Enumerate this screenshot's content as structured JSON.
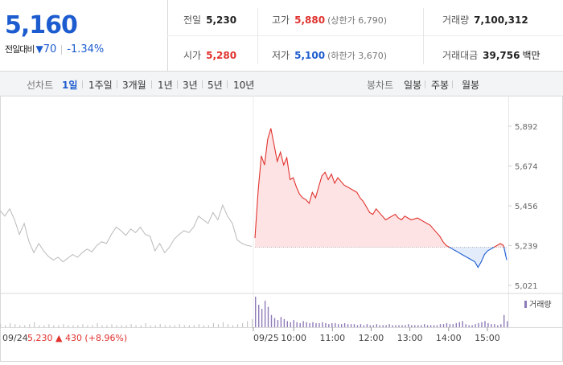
{
  "summary": {
    "price": "5,160",
    "change_label": "전일대비",
    "change_arrow": "▼",
    "change_value": "70",
    "change_pct": "-1.34%"
  },
  "stats": {
    "prev_close": {
      "label": "전일",
      "value": "5,230"
    },
    "open": {
      "label": "시가",
      "value": "5,280"
    },
    "high": {
      "label": "고가",
      "value": "5,880",
      "sub": "(상한가 6,790)"
    },
    "low": {
      "label": "저가",
      "value": "5,100",
      "sub": "(하한가 3,670)"
    },
    "volume": {
      "label": "거래량",
      "value": "7,100,312"
    },
    "amount": {
      "label": "거래대금",
      "value": "39,756",
      "unit": "백만"
    }
  },
  "toolbar": {
    "line_label": "선차트",
    "line_periods": [
      "1일",
      "1주일",
      "3개월",
      "1년",
      "3년",
      "5년",
      "10년"
    ],
    "active_period": "1일",
    "candle_label": "봉차트",
    "candle_periods": [
      "일봉",
      "주봉",
      "월봉"
    ]
  },
  "colors": {
    "up": "#e0322e",
    "down": "#1d5ccf",
    "prev_day_line": "#b9b9b9",
    "up_fill": "#fde3e3",
    "down_fill": "#e3ecfb",
    "volume_prev": "#c6c6c6",
    "volume_today": "#8f7ab8"
  },
  "chart_data": {
    "type": "line",
    "y_ticks": [
      "5,892",
      "5,674",
      "5,456",
      "5,239",
      "5,021"
    ],
    "ylim": [
      5021,
      5892
    ],
    "baseline": 5230,
    "prev_day": {
      "date_label": "09/24",
      "close": "5,230",
      "change_arrow": "▲",
      "change": "430",
      "change_pct": "(+8.96%)",
      "values": [
        5430,
        5400,
        5440,
        5380,
        5300,
        5360,
        5260,
        5200,
        5250,
        5210,
        5180,
        5160,
        5175,
        5150,
        5170,
        5190,
        5175,
        5200,
        5220,
        5205,
        5240,
        5260,
        5250,
        5300,
        5340,
        5320,
        5295,
        5330,
        5310,
        5340,
        5300,
        5290,
        5210,
        5250,
        5200,
        5230,
        5275,
        5300,
        5320,
        5310,
        5340,
        5400,
        5380,
        5360,
        5420,
        5380,
        5460,
        5400,
        5360,
        5270,
        5250,
        5240,
        5235
      ]
    },
    "today": {
      "date_label": "09/25",
      "x_ticks": [
        "10:00",
        "11:00",
        "12:00",
        "13:00",
        "14:00",
        "15:00"
      ],
      "values": [
        5280,
        5540,
        5730,
        5680,
        5820,
        5880,
        5790,
        5700,
        5750,
        5680,
        5720,
        5600,
        5610,
        5560,
        5520,
        5500,
        5490,
        5470,
        5530,
        5500,
        5560,
        5620,
        5640,
        5600,
        5630,
        5580,
        5610,
        5590,
        5570,
        5560,
        5550,
        5540,
        5530,
        5500,
        5480,
        5450,
        5420,
        5410,
        5440,
        5420,
        5400,
        5380,
        5390,
        5400,
        5410,
        5390,
        5380,
        5400,
        5390,
        5380,
        5385,
        5390,
        5380,
        5370,
        5360,
        5350,
        5330,
        5310,
        5290,
        5260,
        5240,
        5230,
        5220,
        5210,
        5200,
        5190,
        5180,
        5170,
        5160,
        5150,
        5120,
        5150,
        5190,
        5210,
        5220,
        5230,
        5240,
        5250,
        5239,
        5160
      ]
    },
    "volume": {
      "legend": "거래량",
      "prev_day": [
        3,
        2,
        4,
        3,
        2,
        2,
        3,
        5,
        2,
        2,
        3,
        2,
        2,
        3,
        2,
        2,
        2,
        3,
        2,
        2,
        4,
        2,
        2,
        3,
        2,
        2,
        2,
        3,
        2,
        2,
        4,
        2,
        2,
        3,
        2,
        2,
        2,
        3,
        2,
        2,
        2,
        3,
        2,
        2,
        4,
        3,
        5,
        3,
        2,
        3,
        4,
        6,
        8
      ],
      "today": [
        30,
        22,
        18,
        26,
        20,
        12,
        9,
        7,
        10,
        8,
        6,
        5,
        7,
        5,
        4,
        6,
        5,
        4,
        5,
        4,
        4,
        5,
        4,
        3,
        4,
        4,
        3,
        3,
        4,
        3,
        3,
        3,
        2,
        3,
        2,
        3,
        2,
        2,
        3,
        2,
        2,
        2,
        3,
        2,
        2,
        2,
        2,
        2,
        3,
        2,
        2,
        2,
        2,
        3,
        2,
        2,
        2,
        2,
        3,
        3,
        4,
        3,
        3,
        4,
        5,
        6,
        3,
        2,
        2,
        3,
        4,
        5,
        6,
        4,
        3,
        3,
        2,
        3,
        12,
        6
      ]
    }
  }
}
